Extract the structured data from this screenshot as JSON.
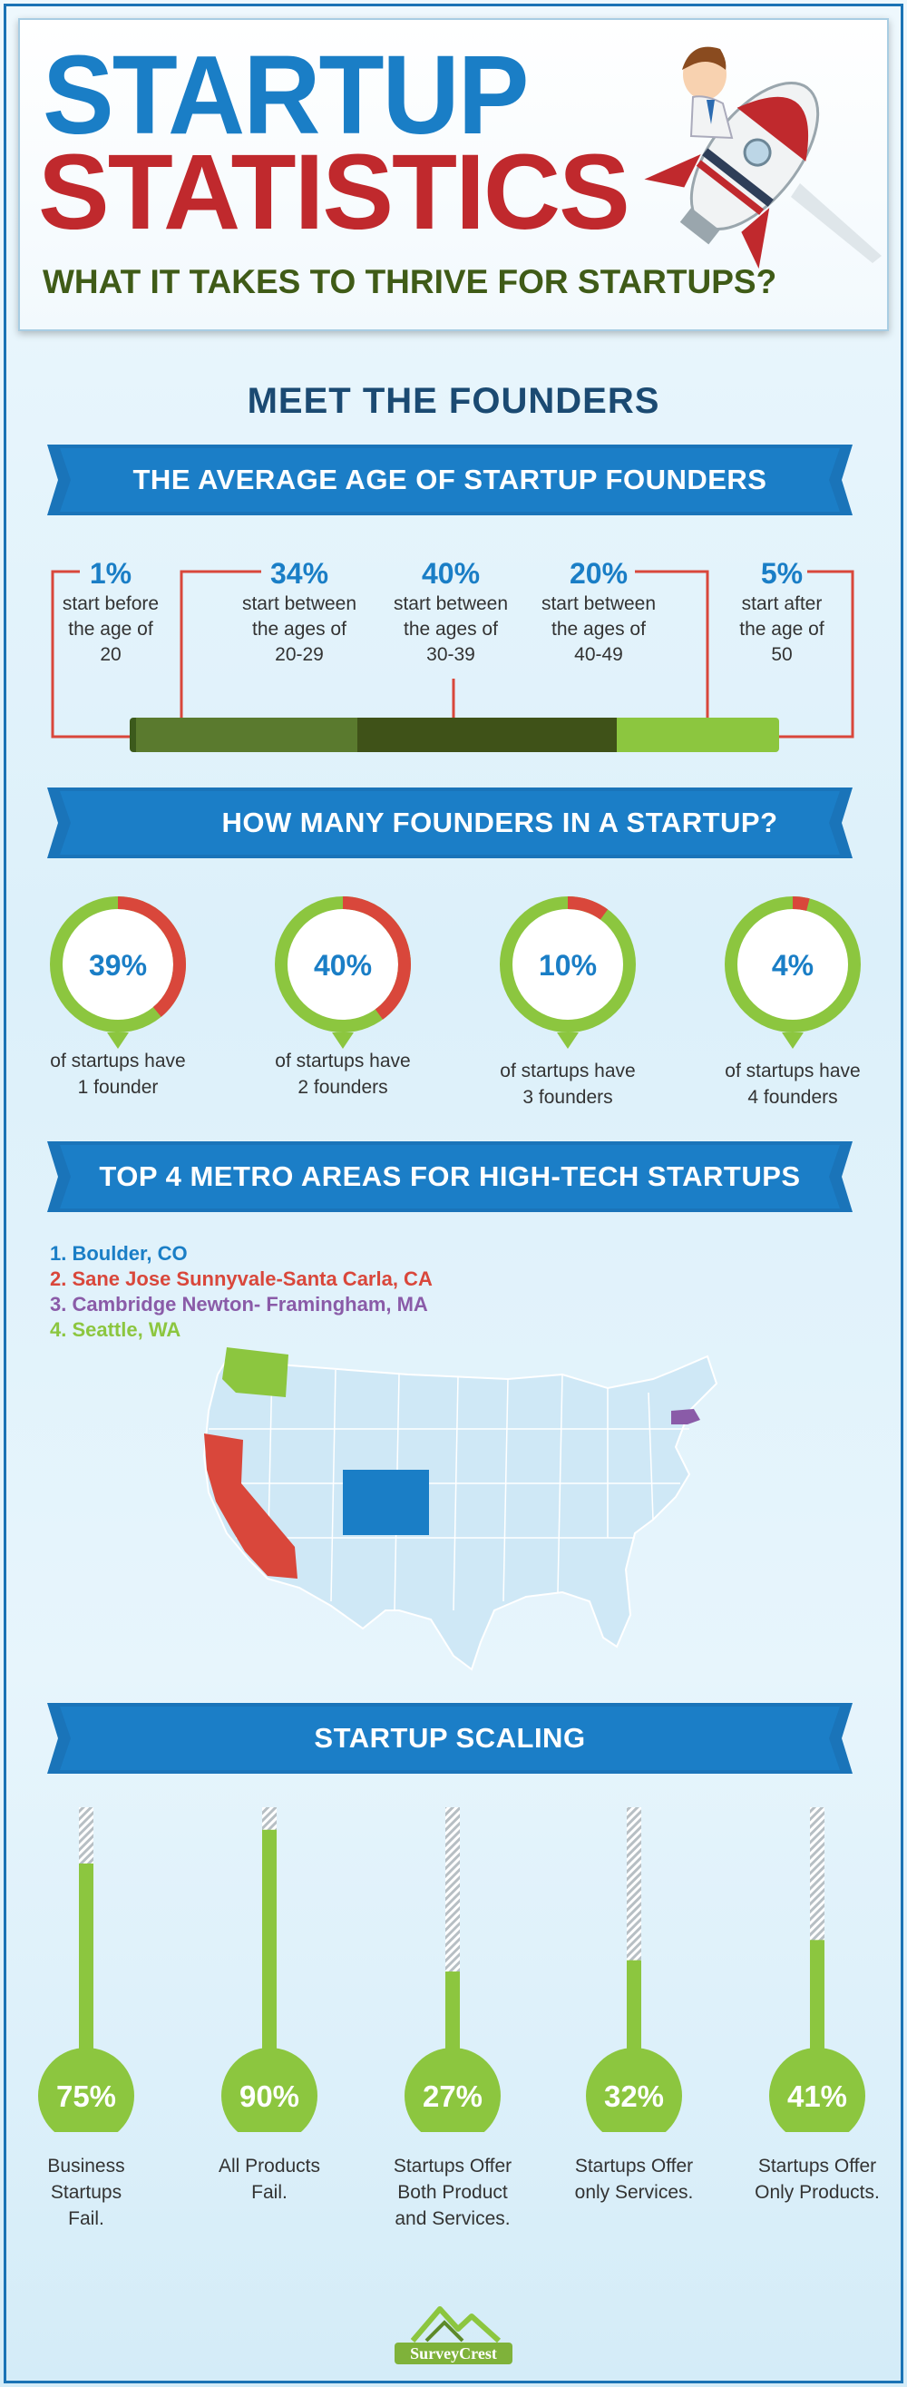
{
  "header": {
    "title_line1": "STARTUP",
    "title_line2": "STATISTICS",
    "subtitle": "WHAT IT TAKES TO THRIVE FOR STARTUPS?"
  },
  "founders_section": {
    "heading": "MEET THE FOUNDERS"
  },
  "age_section": {
    "ribbon": "THE AVERAGE AGE OF STARTUP FOUNDERS",
    "groups": [
      {
        "pct": "1%",
        "desc1": "start before",
        "desc2": "the age of",
        "desc3": "20"
      },
      {
        "pct": "34%",
        "desc1": "start between",
        "desc2": "the ages of",
        "desc3": "20-29"
      },
      {
        "pct": "40%",
        "desc1": "start between",
        "desc2": "the ages of",
        "desc3": "30-39"
      },
      {
        "pct": "20%",
        "desc1": "start between",
        "desc2": "the ages of",
        "desc3": "40-49"
      },
      {
        "pct": "5%",
        "desc1": "start after",
        "desc2": "the age of",
        "desc3": "50"
      }
    ],
    "bar_values": [
      1,
      34,
      40,
      20,
      5
    ]
  },
  "count_section": {
    "ribbon": "HOW MANY FOUNDERS IN A STARTUP?",
    "items": [
      {
        "pct": "39%",
        "line1": "of startups have",
        "line2": "1 founder",
        "value": 39
      },
      {
        "pct": "40%",
        "line1": "of startups have",
        "line2": "2 founders",
        "value": 40
      },
      {
        "pct": "10%",
        "line1": "of startups have",
        "line2": "3 founders",
        "value": 10
      },
      {
        "pct": "4%",
        "line1": "of startups have",
        "line2": "4 founders",
        "value": 4
      }
    ]
  },
  "metro_section": {
    "ribbon": "TOP 4 METRO AREAS FOR HIGH-TECH STARTUPS",
    "items": [
      {
        "label": "1. Boulder, CO",
        "color": "#1a7ec6"
      },
      {
        "label": "2. Sane Jose Sunnyvale-Santa Carla, CA",
        "color": "#d9473b"
      },
      {
        "label": "3. Cambridge Newton- Framingham, MA",
        "color": "#8a5ba8"
      },
      {
        "label": "4. Seattle, WA",
        "color": "#8cc63f"
      }
    ]
  },
  "scaling_section": {
    "ribbon": "STARTUP SCALING",
    "items": [
      {
        "pct": "75%",
        "line1": "Business",
        "line2": "Startups",
        "line3": "Fail.",
        "value": 75
      },
      {
        "pct": "90%",
        "line1": "All Products",
        "line2": "Fail.",
        "line3": "",
        "value": 90
      },
      {
        "pct": "27%",
        "line1": "Startups Offer",
        "line2": "Both Product",
        "line3": "and Services.",
        "value": 27
      },
      {
        "pct": "32%",
        "line1": "Startups Offer",
        "line2": "only Services.",
        "line3": "",
        "value": 32
      },
      {
        "pct": "41%",
        "line1": "Startups Offer",
        "line2": "Only Products.",
        "line3": "",
        "value": 41
      }
    ]
  },
  "footer": {
    "logo_text": "SurveyCrest"
  },
  "colors": {
    "blue": "#1a7ec6",
    "red": "#c0292d",
    "green": "#8cc63f",
    "dark_green": "#4a6020"
  }
}
